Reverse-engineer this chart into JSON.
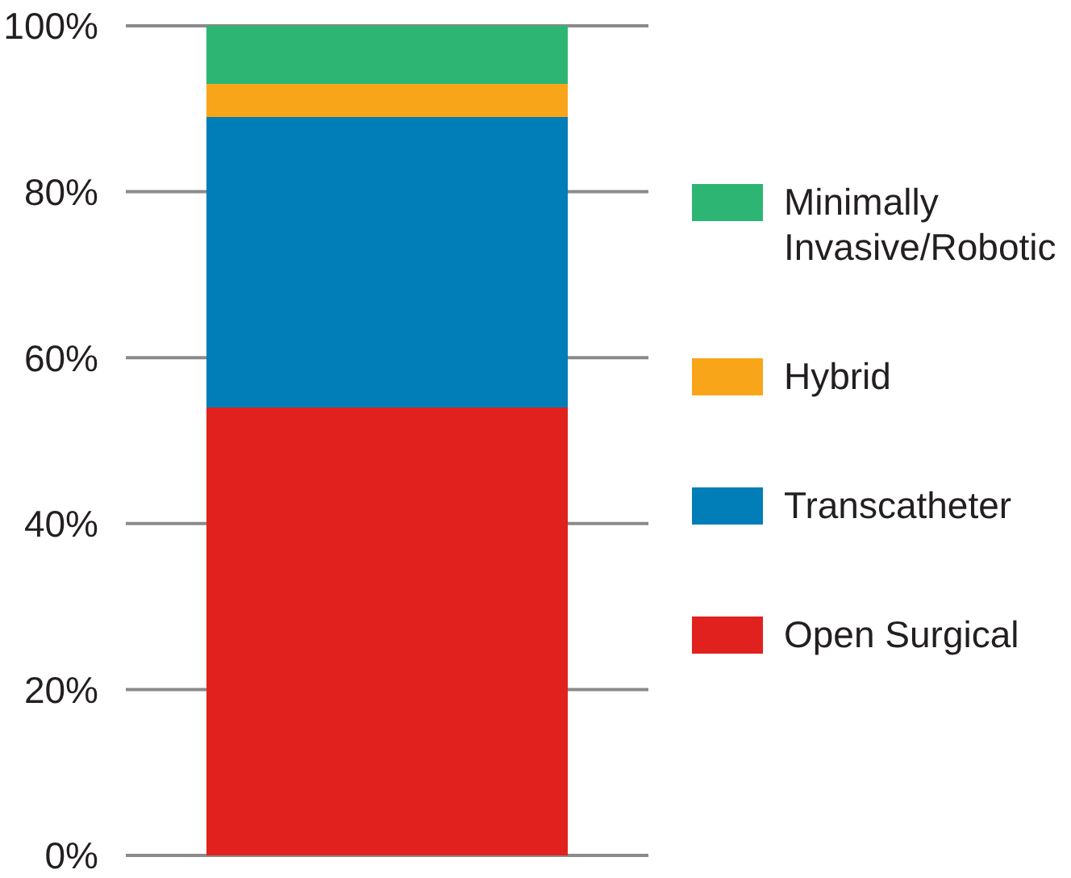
{
  "chart_data": {
    "type": "bar",
    "stacked": true,
    "categories": [
      null
    ],
    "series": [
      {
        "name": "Open Surgical",
        "color": "#e1211e",
        "values": [
          54
        ]
      },
      {
        "name": "Transcatheter",
        "color": "#017db8",
        "values": [
          35
        ]
      },
      {
        "name": "Hybrid",
        "color": "#f9a51a",
        "values": [
          4
        ]
      },
      {
        "name": "Minimally Invasive/Robotic",
        "color": "#2db673",
        "values": [
          7
        ]
      }
    ],
    "ylim": [
      0,
      100
    ],
    "yticks": [
      {
        "value": 0,
        "label": "0%"
      },
      {
        "value": 20,
        "label": "20%"
      },
      {
        "value": 40,
        "label": "40%"
      },
      {
        "value": 60,
        "label": "60%"
      },
      {
        "value": 80,
        "label": "80%"
      },
      {
        "value": 100,
        "label": "100%"
      }
    ],
    "grid": "y",
    "legend": "right"
  }
}
